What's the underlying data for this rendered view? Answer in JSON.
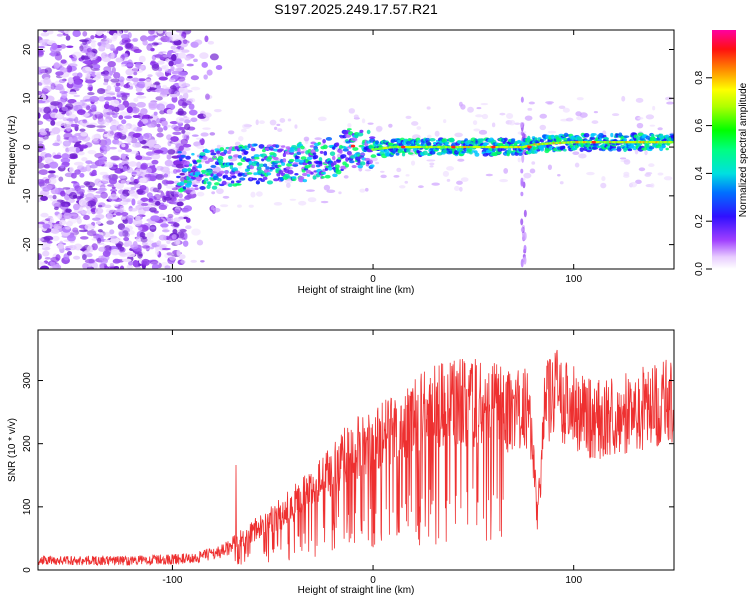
{
  "title": "S197.2025.249.17.57.R21",
  "chart_data": [
    {
      "type": "heatmap",
      "xlabel": "Height of straight line (km)",
      "ylabel": "Frequency (Hz)",
      "xlim": [
        -167,
        150
      ],
      "ylim": [
        -25,
        24
      ],
      "xticks": [
        -100,
        0,
        100
      ],
      "yticks": [
        20,
        10,
        0,
        -10,
        -20
      ],
      "trace": {
        "x": [
          -97,
          -90,
          -80,
          -70,
          -60,
          -50,
          -40,
          -30,
          -20,
          -10,
          0,
          10,
          20,
          40,
          60,
          75,
          80,
          90,
          100,
          120,
          150
        ],
        "y": [
          -5,
          -5,
          -4.5,
          -4,
          -3.5,
          -3.5,
          -3,
          -3,
          -2,
          0,
          -0.5,
          0,
          0,
          0,
          0,
          0,
          0.5,
          0.8,
          1,
          1,
          1
        ]
      },
      "colorbar": {
        "label": "Normalized spectral amplitude",
        "range": [
          0,
          1
        ],
        "ticks": [
          0.0,
          0.2,
          0.4,
          0.6,
          0.8
        ]
      }
    },
    {
      "type": "line",
      "xlabel": "Height of straight line (km)",
      "ylabel": "SNR (10 * v/v)",
      "xlim": [
        -167,
        150
      ],
      "ylim": [
        0,
        380
      ],
      "xticks": [
        -100,
        0,
        100
      ],
      "yticks": [
        0,
        100,
        200,
        300
      ],
      "color": "#ee3030",
      "envelope": {
        "x": [
          -167,
          -120,
          -90,
          -75,
          -60,
          -45,
          -30,
          -20,
          -10,
          0,
          10,
          20,
          30,
          40,
          50,
          60,
          70,
          78,
          82,
          86,
          90,
          100,
          110,
          120,
          130,
          140,
          150
        ],
        "y": [
          15,
          15,
          18,
          30,
          60,
          90,
          130,
          160,
          190,
          200,
          220,
          240,
          260,
          265,
          265,
          260,
          250,
          260,
          80,
          270,
          275,
          260,
          235,
          245,
          250,
          260,
          270
        ]
      }
    }
  ]
}
